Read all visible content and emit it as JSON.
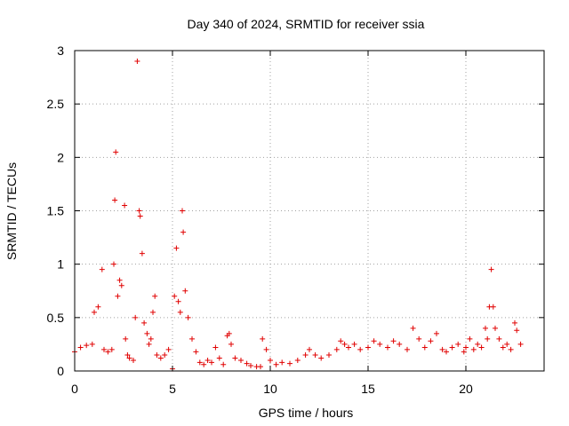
{
  "chart_data": {
    "type": "scatter",
    "title": "Day 340 of 2024, SRMTID for receiver ssia",
    "xlabel": "GPS time / hours",
    "ylabel": "SRMTID / TECUs",
    "xlim": [
      0,
      24
    ],
    "ylim": [
      0,
      3
    ],
    "xticks": [
      0,
      5,
      10,
      15,
      20
    ],
    "yticks": [
      0,
      0.5,
      1,
      1.5,
      2,
      2.5,
      3
    ],
    "xtick_labels": [
      "0",
      "5",
      "10",
      "15",
      "20"
    ],
    "ytick_labels": [
      "0",
      "0.5",
      "1",
      "1.5",
      "2",
      "2.5",
      "3"
    ],
    "grid": true,
    "marker": "plus",
    "color": "#e00000",
    "series": [
      {
        "name": "ssia",
        "x": [
          0.0,
          0.3,
          0.6,
          0.9,
          1.0,
          1.2,
          1.4,
          1.5,
          1.7,
          1.9,
          2.0,
          2.05,
          2.1,
          2.2,
          2.3,
          2.4,
          2.55,
          2.6,
          2.7,
          2.8,
          3.0,
          3.1,
          3.2,
          3.3,
          3.35,
          3.45,
          3.55,
          3.7,
          3.8,
          3.9,
          4.0,
          4.1,
          4.2,
          4.4,
          4.6,
          4.8,
          5.0,
          5.1,
          5.2,
          5.3,
          5.4,
          5.5,
          5.55,
          5.65,
          5.8,
          6.0,
          6.2,
          6.4,
          6.6,
          6.8,
          7.0,
          7.2,
          7.4,
          7.6,
          7.8,
          7.9,
          8.0,
          8.2,
          8.5,
          8.8,
          9.0,
          9.3,
          9.5,
          9.6,
          9.8,
          10.0,
          10.3,
          10.6,
          11.0,
          11.4,
          11.8,
          12.0,
          12.3,
          12.6,
          13.0,
          13.4,
          13.6,
          13.8,
          14.0,
          14.3,
          14.6,
          15.0,
          15.3,
          15.6,
          16.0,
          16.3,
          16.6,
          17.0,
          17.3,
          17.6,
          17.9,
          18.2,
          18.5,
          18.8,
          19.0,
          19.3,
          19.6,
          19.9,
          20.0,
          20.2,
          20.4,
          20.6,
          20.8,
          21.0,
          21.1,
          21.2,
          21.3,
          21.4,
          21.5,
          21.7,
          21.9,
          22.1,
          22.3,
          22.5,
          22.6,
          22.8
        ],
        "y": [
          0.18,
          0.22,
          0.24,
          0.25,
          0.55,
          0.6,
          0.95,
          0.2,
          0.18,
          0.2,
          1.0,
          1.6,
          2.05,
          0.7,
          0.85,
          0.8,
          1.55,
          0.3,
          0.15,
          0.12,
          0.1,
          0.5,
          2.9,
          1.5,
          1.45,
          1.1,
          0.45,
          0.35,
          0.25,
          0.3,
          0.55,
          0.7,
          0.15,
          0.12,
          0.15,
          0.2,
          0.02,
          0.7,
          1.15,
          0.65,
          0.55,
          1.5,
          1.3,
          0.75,
          0.5,
          0.3,
          0.18,
          0.08,
          0.06,
          0.1,
          0.08,
          0.22,
          0.12,
          0.06,
          0.33,
          0.35,
          0.25,
          0.12,
          0.1,
          0.07,
          0.05,
          0.04,
          0.04,
          0.3,
          0.2,
          0.1,
          0.06,
          0.08,
          0.07,
          0.1,
          0.15,
          0.2,
          0.15,
          0.12,
          0.15,
          0.2,
          0.28,
          0.25,
          0.22,
          0.25,
          0.2,
          0.22,
          0.28,
          0.25,
          0.22,
          0.28,
          0.25,
          0.2,
          0.4,
          0.3,
          0.22,
          0.28,
          0.35,
          0.2,
          0.18,
          0.22,
          0.25,
          0.18,
          0.22,
          0.3,
          0.2,
          0.25,
          0.22,
          0.4,
          0.3,
          0.6,
          0.95,
          0.6,
          0.4,
          0.3,
          0.22,
          0.25,
          0.2,
          0.45,
          0.38,
          0.25
        ]
      }
    ]
  }
}
